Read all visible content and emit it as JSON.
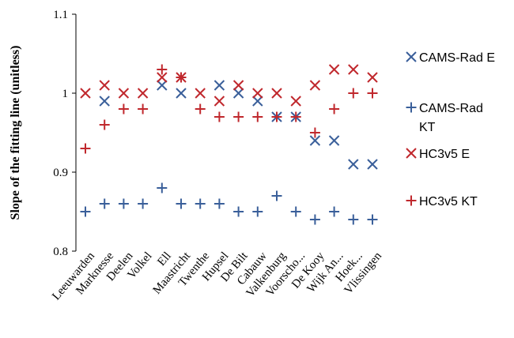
{
  "chart_data": {
    "type": "scatter",
    "title": "",
    "xlabel": "",
    "ylabel": "Slope of the fitting line (unitless)",
    "ylim": [
      0.8,
      1.1
    ],
    "yticks": [
      "0.8",
      "0.9",
      "1",
      "1.1"
    ],
    "grid": false,
    "legend_position": "right",
    "categories": [
      "Leeuwarden",
      "Marknesse",
      "Deelen",
      "Volkel",
      "Ell",
      "Maastricht",
      "Twenthe",
      "Hupsel",
      "De Bilt",
      "Cabauw",
      "Valkenburg",
      "Voorscho...",
      "De Kooy",
      "Wijk An...",
      "Hoek...",
      "Vlissingen"
    ],
    "series": [
      {
        "name": "CAMS-Rad E",
        "marker": "x",
        "color": "#3a5f9a",
        "values": [
          null,
          0.99,
          null,
          null,
          1.01,
          1.0,
          null,
          1.01,
          1.0,
          0.99,
          0.97,
          0.97,
          0.94,
          0.94,
          0.91,
          0.91
        ]
      },
      {
        "name": "CAMS-Rad KT",
        "marker": "+",
        "color": "#3a5f9a",
        "values": [
          0.85,
          0.86,
          0.86,
          0.86,
          0.88,
          0.86,
          0.86,
          0.86,
          0.85,
          0.85,
          0.87,
          0.85,
          0.84,
          0.85,
          0.84,
          0.84
        ]
      },
      {
        "name": "HC3v5 E",
        "marker": "x",
        "color": "#c0282d",
        "values": [
          1.0,
          1.01,
          1.0,
          1.0,
          1.02,
          1.02,
          1.0,
          0.99,
          1.01,
          1.0,
          1.0,
          0.99,
          1.01,
          1.03,
          1.03,
          1.02
        ]
      },
      {
        "name": "HC3v5 KT",
        "marker": "+",
        "color": "#c0282d",
        "values": [
          0.93,
          0.96,
          0.98,
          0.98,
          1.03,
          1.02,
          0.98,
          0.97,
          0.97,
          0.97,
          0.97,
          0.97,
          0.95,
          0.98,
          1.0,
          1.0
        ]
      }
    ],
    "legend": [
      {
        "series": 0,
        "lines": [
          "CAMS-Rad E"
        ]
      },
      {
        "series": 1,
        "lines": [
          "CAMS-Rad",
          "KT"
        ]
      },
      {
        "series": 2,
        "lines": [
          "HC3v5 E"
        ]
      },
      {
        "series": 3,
        "lines": [
          "HC3v5 KT"
        ]
      }
    ]
  }
}
